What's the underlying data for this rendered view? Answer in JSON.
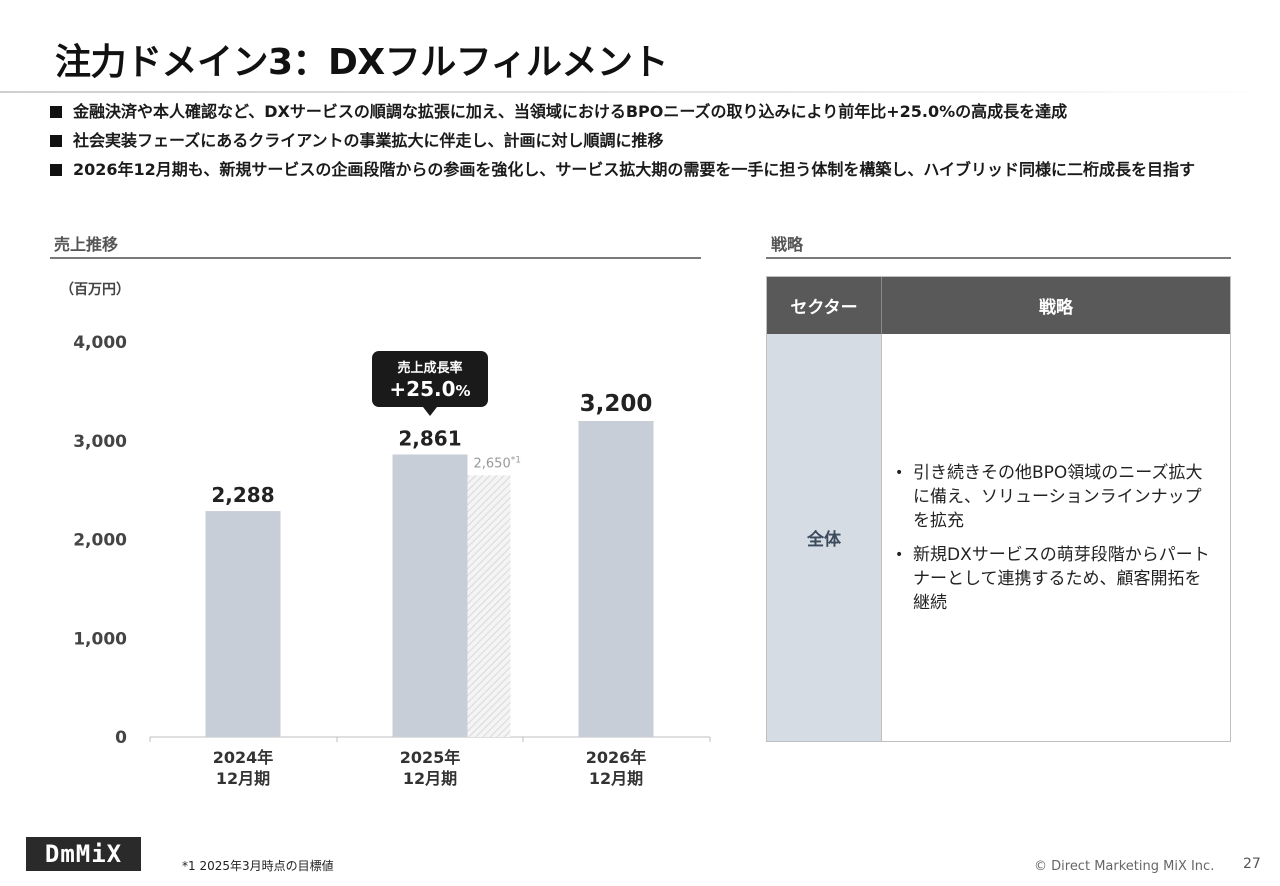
{
  "title": "注力ドメイン3：DXフルフィルメント",
  "bullets": [
    "金融決済や本人確認など、DXサービスの順調な拡張に加え、当領域におけるBPOニーズの取り込みにより前年比+25.0%の高成長を達成",
    "社会実装フェーズにあるクライアントの事業拡大に伴走し、計画に対し順調に推移",
    "2026年12月期も、新規サービスの企画段階からの参画を強化し、サービス拡大期の需要を一手に担う体制を構築し、ハイブリッド同様に二桁成長を目指す"
  ],
  "sales_section": {
    "title": "売上推移",
    "unit": "（百万円）"
  },
  "strategy_section": {
    "title": "戦略"
  },
  "chart_data": {
    "type": "bar",
    "categories": [
      {
        "line1": "2024年",
        "line2": "12月期"
      },
      {
        "line1": "2025年",
        "line2": "12月期"
      },
      {
        "line1": "2026年",
        "line2": "12月期"
      }
    ],
    "values": [
      2288,
      2861,
      3200
    ],
    "value_labels": [
      "2,288",
      "2,861",
      "3,200"
    ],
    "target": {
      "category_index": 1,
      "value": 2650,
      "label": "2,650",
      "note_mark": "*1"
    },
    "yticks": [
      0,
      1000,
      2000,
      3000,
      4000
    ],
    "ytick_labels": [
      "0",
      "1,000",
      "2,000",
      "3,000",
      "4,000"
    ],
    "ylim": [
      0,
      4000
    ],
    "callout": {
      "label": "売上成長率",
      "value": "+25.0",
      "unit": "%",
      "category_index": 1
    },
    "colors": {
      "bar": "#c8ced8",
      "target_hatch": "#d9d9d9",
      "callout_bg": "#1a1a1a"
    }
  },
  "strategy_table": {
    "headers": [
      "セクター",
      "戦略"
    ],
    "sector": "全体",
    "items": [
      "引き続きその他BPO領域のニーズ拡大に備え、ソリューションラインナップを拡充",
      "新規DXサービスの萌芽段階からパートナーとして連携するため、顧客開拓を継続"
    ]
  },
  "footer": {
    "logo": "DmMiX",
    "footnote": "*1  2025年3月時点の目標値",
    "copyright": "© Direct Marketing MiX Inc.",
    "page": "27"
  }
}
